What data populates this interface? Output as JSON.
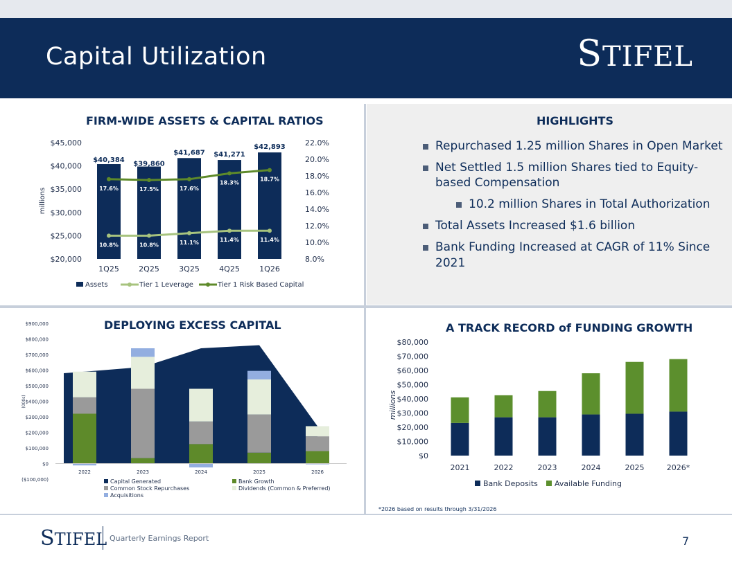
{
  "page": {
    "title": "Capital Utilization",
    "logo_initial": "S",
    "logo_rest": "TIFEL",
    "footer_logo_initial": "S",
    "footer_logo_rest": "TIFEL",
    "footer_text": "Quarterly Earnings Report",
    "page_number": "7",
    "footnote": "*2026 based on results through 3/31/2026"
  },
  "colors": {
    "navy": "#0d2c59",
    "light_green": "#a7c37e",
    "dark_green": "#5e8a2a",
    "funding_green": "#5c8f2d",
    "gray": "#9a9a9a",
    "pale": "#e6eedc",
    "light_blue": "#93aee0"
  },
  "highlights": {
    "title": "HIGHLIGHTS",
    "items": [
      "Repurchased 1.25 million Shares in Open Market",
      "Net Settled 1.5 million Shares tied to Equity-based Compensation",
      "10.2 million Shares in Total Authorization",
      "Total Assets Increased $1.6 billion",
      "Bank Funding Increased at CAGR of 11% Since 2021"
    ]
  },
  "chart_data": [
    {
      "type": "bar",
      "title": "FIRM-WIDE ASSETS & CAPITAL RATIOS",
      "ylabel": "millions",
      "categories": [
        "1Q25",
        "2Q25",
        "3Q25",
        "4Q25",
        "1Q26"
      ],
      "ylim": [
        20000,
        45000
      ],
      "y_ticks": [
        "$45,000",
        "$40,000",
        "$35,000",
        "$30,000",
        "$25,000",
        "$20,000"
      ],
      "y2lim": [
        8.0,
        22.0
      ],
      "y2_ticks": [
        "22.0%",
        "20.0%",
        "18.0%",
        "16.0%",
        "14.0%",
        "12.0%",
        "10.0%",
        "8.0%"
      ],
      "series": [
        {
          "name": "Assets",
          "kind": "bar",
          "values": [
            40384,
            39860,
            41687,
            41271,
            42893
          ],
          "labels": [
            "$40,384",
            "$39,860",
            "$41,687",
            "$41,271",
            "$42,893"
          ]
        },
        {
          "name": "Tier 1 Leverage",
          "kind": "line",
          "axis": "secondary",
          "values": [
            10.8,
            10.8,
            11.1,
            11.4,
            11.4
          ],
          "labels": [
            "10.8%",
            "10.8%",
            "11.1%",
            "11.4%",
            "11.4%"
          ]
        },
        {
          "name": "Tier 1 Risk Based Capital",
          "kind": "line",
          "axis": "secondary",
          "values": [
            17.6,
            17.5,
            17.6,
            18.3,
            18.7
          ],
          "labels": [
            "17.6%",
            "17.5%",
            "17.6%",
            "18.3%",
            "18.7%"
          ]
        }
      ],
      "legend": [
        "Assets",
        "Tier 1 Leverage",
        "Tier 1 Risk Based Capital"
      ]
    },
    {
      "type": "bar",
      "title": "DEPLOYING EXCESS CAPITAL",
      "ylabel": "(000s)",
      "categories": [
        "2022",
        "2023",
        "2024",
        "2025",
        "2026"
      ],
      "ylim": [
        -100000,
        900000
      ],
      "y_ticks": [
        "$900,000",
        "$800,000",
        "$700,000",
        "$600,000",
        "$500,000",
        "$400,000",
        "$300,000",
        "$200,000",
        "$100,000",
        "$0",
        "($100,000)"
      ],
      "area": {
        "name": "Capital Generated",
        "values": [
          590000,
          620000,
          740000,
          760000,
          240000
        ]
      },
      "series": [
        {
          "name": "Bank Growth",
          "values": [
            320000,
            35000,
            125000,
            70000,
            80000
          ]
        },
        {
          "name": "Common Stock Repurchases",
          "values": [
            105000,
            445000,
            145000,
            245000,
            95000
          ]
        },
        {
          "name": "Dividends (Common & Preferred)",
          "values": [
            165000,
            205000,
            210000,
            225000,
            65000
          ]
        },
        {
          "name": "Acquisitions",
          "values": [
            -12000,
            55000,
            -25000,
            55000,
            -5000
          ]
        }
      ],
      "legend": [
        "Capital Generated",
        "Bank Growth",
        "Common Stock Repurchases",
        "Dividends (Common & Preferred)",
        "Acquisitions"
      ]
    },
    {
      "type": "bar",
      "title": "A TRACK RECORD of FUNDING GROWTH",
      "ylabel": "millions",
      "categories": [
        "2021",
        "2022",
        "2023",
        "2024",
        "2025",
        "2026*"
      ],
      "ylim": [
        0,
        80000
      ],
      "y_ticks": [
        "$80,000",
        "$70,000",
        "$60,000",
        "$50,000",
        "$40,000",
        "$30,000",
        "$20,000",
        "$10,000",
        "$0"
      ],
      "series": [
        {
          "name": "Bank Deposits",
          "values": [
            23000,
            27000,
            27000,
            29000,
            29500,
            31000
          ]
        },
        {
          "name": "Available Funding",
          "values": [
            18000,
            15500,
            18500,
            29000,
            36500,
            37000
          ]
        }
      ],
      "legend": [
        "Bank Deposits",
        "Available Funding"
      ]
    }
  ]
}
